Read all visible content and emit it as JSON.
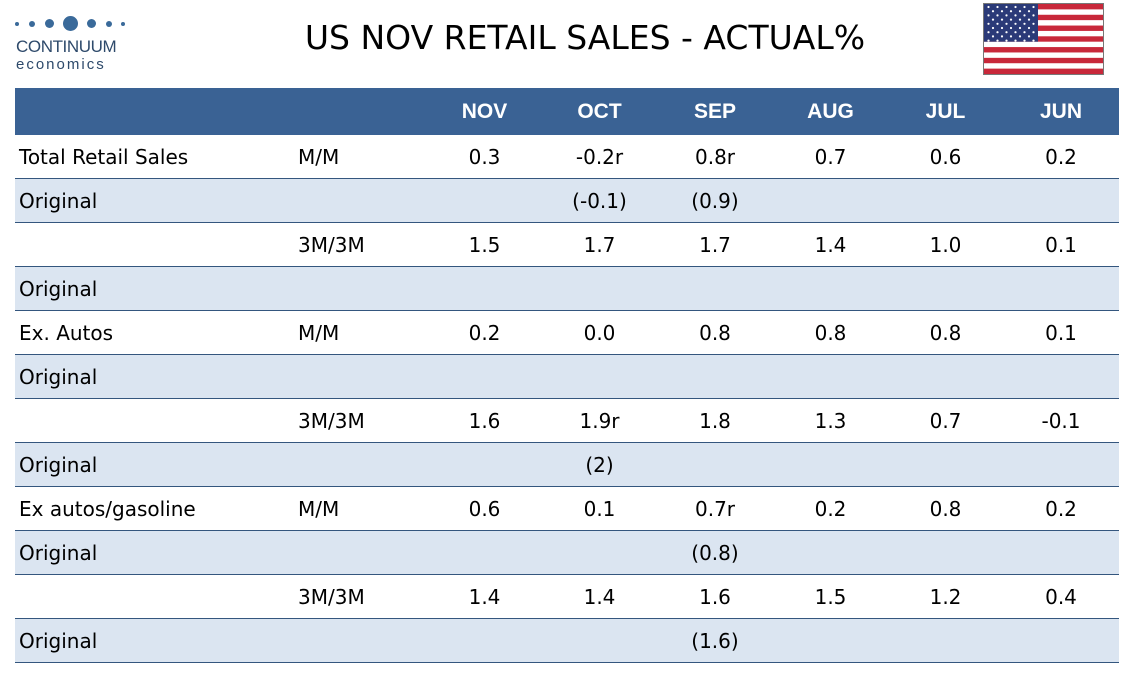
{
  "logo": {
    "name": "CONTINUUM",
    "sub": "economics"
  },
  "title": "US NOV RETAIL SALES - ACTUAL%",
  "flag": {
    "icon": "us-flag-icon"
  },
  "colors": {
    "header_bg": "#3a6294",
    "row_shade": "#dbe5f1",
    "rule": "#34567e"
  },
  "table": {
    "columns": [
      "",
      "",
      "NOV",
      "OCT",
      "SEP",
      "AUG",
      "JUL",
      "JUN"
    ],
    "rows": [
      {
        "shade": false,
        "cells": [
          "Total Retail Sales",
          "M/M",
          "0.3",
          "-0.2r",
          "0.8r",
          "0.7",
          "0.6",
          "0.2"
        ]
      },
      {
        "shade": true,
        "cells": [
          "Original",
          "",
          "",
          "(-0.1)",
          "(0.9)",
          "",
          "",
          ""
        ]
      },
      {
        "shade": false,
        "cells": [
          "",
          "3M/3M",
          "1.5",
          "1.7",
          "1.7",
          "1.4",
          "1.0",
          "0.1"
        ]
      },
      {
        "shade": true,
        "cells": [
          "Original",
          "",
          "",
          "",
          "",
          "",
          "",
          ""
        ]
      },
      {
        "shade": false,
        "cells": [
          "Ex. Autos",
          "M/M",
          "0.2",
          "0.0",
          "0.8",
          "0.8",
          "0.8",
          "0.1"
        ]
      },
      {
        "shade": true,
        "cells": [
          "Original",
          "",
          "",
          "",
          "",
          "",
          "",
          ""
        ]
      },
      {
        "shade": false,
        "cells": [
          "",
          "3M/3M",
          "1.6",
          "1.9r",
          "1.8",
          "1.3",
          "0.7",
          "-0.1"
        ]
      },
      {
        "shade": true,
        "cells": [
          "Original",
          "",
          "",
          "(2)",
          "",
          "",
          "",
          ""
        ]
      },
      {
        "shade": false,
        "cells": [
          "Ex autos/gasoline",
          "M/M",
          "0.6",
          "0.1",
          "0.7r",
          "0.2",
          "0.8",
          "0.2"
        ]
      },
      {
        "shade": true,
        "cells": [
          "Original",
          "",
          "",
          "",
          "(0.8)",
          "",
          "",
          ""
        ]
      },
      {
        "shade": false,
        "cells": [
          "",
          "3M/3M",
          "1.4",
          "1.4",
          "1.6",
          "1.5",
          "1.2",
          "0.4"
        ]
      },
      {
        "shade": true,
        "cells": [
          "Original",
          "",
          "",
          "",
          "(1.6)",
          "",
          "",
          ""
        ]
      }
    ]
  }
}
